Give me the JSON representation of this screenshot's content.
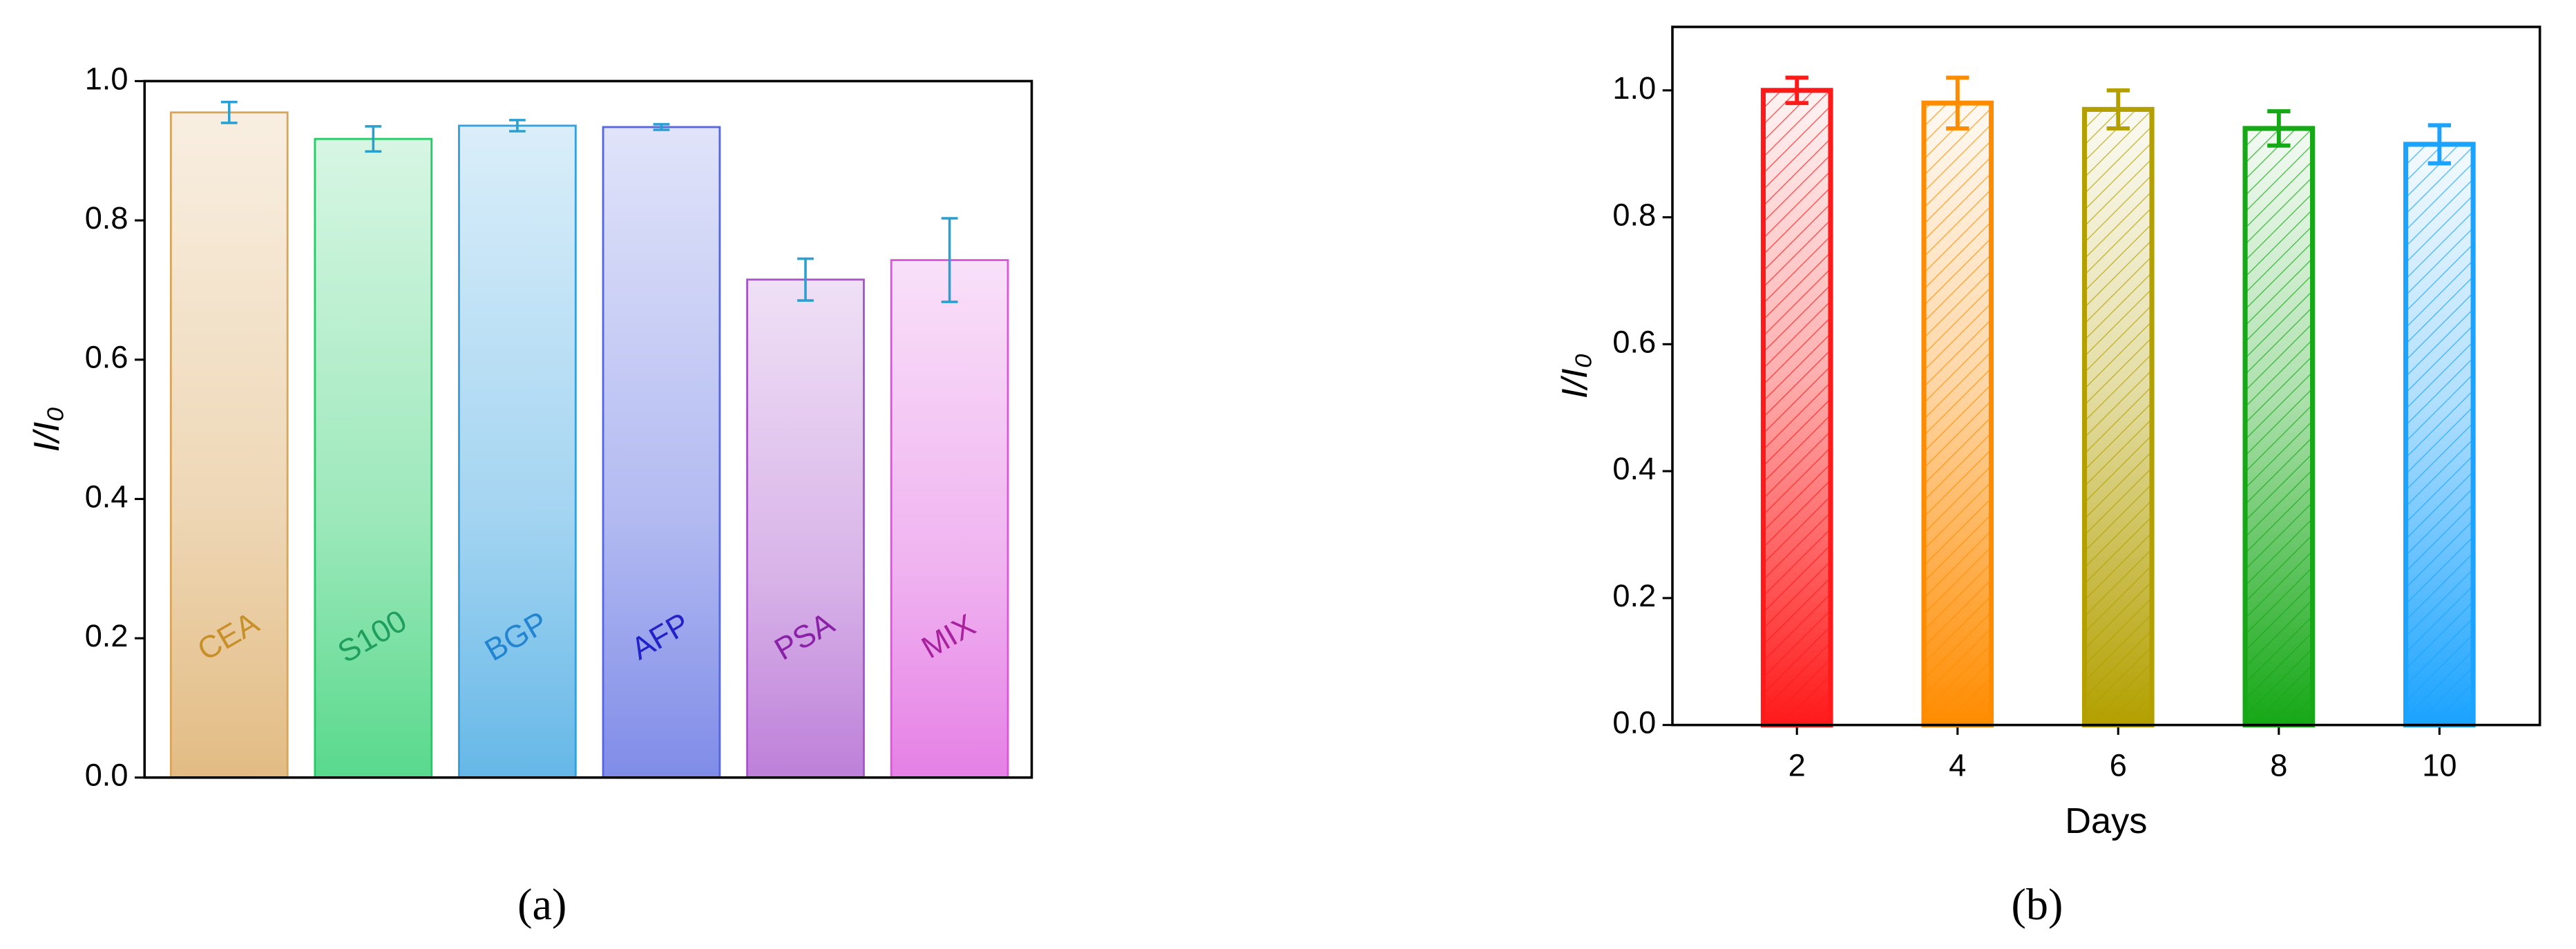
{
  "chart_data": [
    {
      "type": "bar",
      "categories": [
        "CEA",
        "S100",
        "BGP",
        "AFP",
        "PSA",
        "MIX"
      ],
      "values": [
        0.955,
        0.917,
        0.936,
        0.934,
        0.715,
        0.743
      ],
      "errors": [
        0.015,
        0.018,
        0.008,
        0.004,
        0.03,
        0.06
      ],
      "colors": [
        "#d9a55a",
        "#22cc66",
        "#33a0e0",
        "#5566e0",
        "#a855cc",
        "#dd55dd"
      ],
      "label_colors": [
        "#c8902a",
        "#1f9e5e",
        "#2385d0",
        "#2222c8",
        "#8a22a8",
        "#a8229e"
      ],
      "error_color": "#2aa0d0",
      "y_label": "I/I₀",
      "ylim": [
        0,
        1
      ],
      "yticks": [
        {
          "value": 0,
          "label": "0.0"
        },
        0.2,
        0.4,
        0.6,
        0.8,
        {
          "value": 1,
          "label": "1.0"
        }
      ],
      "caption": "(a)"
    },
    {
      "type": "bar",
      "x": [
        2,
        4,
        6,
        8,
        10
      ],
      "values": [
        1.0,
        0.98,
        0.97,
        0.94,
        0.915
      ],
      "errors": [
        0.02,
        0.04,
        0.03,
        0.027,
        0.03
      ],
      "colors": [
        "#ff1a1a",
        "#ff8c00",
        "#b3a000",
        "#16a816",
        "#1aa3ff"
      ],
      "hatch": true,
      "x_label": "Days",
      "y_label": "I/I₀",
      "xlim": [
        0.45,
        11.25
      ],
      "xticks": [
        2,
        4,
        6,
        8,
        10
      ],
      "ylim": [
        0,
        1.1
      ],
      "yticks": [
        {
          "value": 0,
          "label": "0.0"
        },
        0.2,
        0.4,
        0.6,
        0.8,
        {
          "value": 1,
          "label": "1.0"
        }
      ],
      "caption": "(b)"
    }
  ]
}
